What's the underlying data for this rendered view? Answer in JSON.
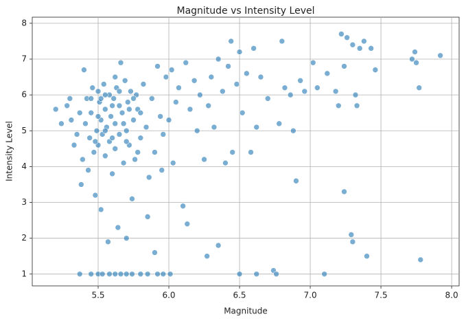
{
  "chart_data": {
    "type": "scatter",
    "title": "Magnitude vs Intensity Level",
    "x_label": "Magnitude",
    "y_label": "Intensity Level",
    "color": "#1f77b4",
    "grid": true,
    "xlim": [
      5.034,
      8.053
    ],
    "ylim": [
      0.67,
      8.17
    ],
    "xticks": [
      {
        "value": 5.5,
        "label": "5.5"
      },
      {
        "value": 6.0,
        "label": "6.0"
      },
      {
        "value": 6.5,
        "label": "6.5"
      },
      {
        "value": 7.0,
        "label": "7.0"
      },
      {
        "value": 7.5,
        "label": "7.5"
      },
      {
        "value": 8.0,
        "label": "8.0"
      }
    ],
    "yticks": [
      1,
      2,
      3,
      4,
      5,
      6,
      7,
      8
    ],
    "x": [
      5.2,
      5.24,
      5.28,
      5.3,
      5.31,
      5.33,
      5.35,
      5.37,
      5.38,
      5.39,
      5.4,
      5.41,
      5.42,
      5.43,
      5.44,
      5.45,
      5.46,
      5.47,
      5.48,
      5.49,
      5.5,
      5.5,
      5.51,
      5.52,
      5.52,
      5.53,
      5.54,
      5.55,
      5.55,
      5.56,
      5.57,
      5.58,
      5.58,
      5.59,
      5.6,
      5.61,
      5.62,
      5.62,
      5.63,
      5.64,
      5.65,
      5.65,
      5.66,
      5.67,
      5.68,
      5.69,
      5.7,
      5.7,
      5.71,
      5.72,
      5.73,
      5.74,
      5.75,
      5.76,
      5.77,
      5.78,
      5.8,
      5.82,
      5.84,
      5.85,
      5.86,
      5.88,
      5.9,
      5.9,
      5.92,
      5.94,
      5.95,
      5.96,
      5.98,
      6.0,
      6.02,
      6.03,
      6.05,
      6.07,
      6.1,
      6.12,
      6.13,
      6.15,
      6.18,
      6.2,
      6.22,
      6.25,
      6.27,
      6.28,
      6.3,
      6.32,
      6.35,
      6.35,
      6.38,
      6.4,
      6.42,
      6.44,
      6.45,
      6.48,
      6.5,
      6.5,
      6.52,
      6.55,
      6.58,
      6.6,
      6.62,
      6.62,
      6.65,
      6.7,
      6.74,
      6.76,
      6.78,
      6.8,
      6.82,
      6.86,
      6.88,
      6.9,
      6.93,
      6.96,
      7.02,
      7.05,
      7.1,
      7.12,
      7.18,
      7.2,
      7.22,
      7.24,
      7.24,
      7.26,
      7.29,
      7.3,
      7.3,
      7.32,
      7.33,
      7.35,
      7.38,
      7.4,
      7.43,
      7.46,
      7.72,
      7.74,
      7.75,
      7.77,
      7.78,
      7.92,
      5.37,
      5.45,
      5.5,
      5.53,
      5.58,
      5.62,
      5.66,
      5.7,
      5.74,
      5.8,
      5.85,
      5.92,
      5.96,
      6.01,
      5.45,
      5.5,
      5.55,
      5.6,
      5.65,
      5.7,
      5.75,
      5.8,
      5.55,
      5.6,
      5.68,
      5.72,
      5.62,
      5.78,
      5.48,
      5.52
    ],
    "y": [
      5.6,
      5.2,
      5.7,
      5.9,
      5.3,
      4.6,
      4.9,
      5.5,
      3.5,
      4.2,
      6.7,
      5.2,
      5.9,
      3.9,
      4.8,
      5.5,
      6.2,
      4.4,
      3.2,
      5.0,
      6.1,
      4.6,
      5.8,
      5.3,
      2.8,
      4.9,
      6.3,
      5.6,
      4.3,
      5.1,
      1.9,
      6.0,
      4.7,
      5.4,
      3.8,
      5.9,
      5.2,
      4.5,
      6.2,
      2.3,
      5.7,
      4.9,
      6.9,
      5.5,
      4.1,
      6.4,
      5.0,
      2.0,
      5.8,
      4.6,
      6.1,
      3.1,
      5.3,
      4.2,
      6.0,
      5.6,
      4.8,
      6.3,
      5.1,
      2.6,
      3.7,
      5.9,
      1.6,
      4.4,
      6.8,
      5.4,
      3.9,
      4.9,
      6.5,
      5.3,
      6.7,
      4.1,
      5.8,
      6.2,
      2.9,
      6.9,
      2.4,
      5.6,
      6.4,
      5.0,
      6.0,
      4.2,
      1.5,
      5.7,
      6.5,
      5.1,
      1.8,
      7.0,
      6.1,
      4.1,
      6.8,
      7.5,
      4.4,
      6.3,
      7.2,
      1,
      5.5,
      6.6,
      4.4,
      7.3,
      1,
      5.1,
      6.5,
      5.9,
      1.1,
      1,
      5.2,
      7.5,
      6.2,
      6.0,
      5.0,
      3.6,
      6.4,
      6.1,
      6.9,
      6.2,
      1,
      6.6,
      6.1,
      5.7,
      7.7,
      3.3,
      6.8,
      7.6,
      2.1,
      1.9,
      7.4,
      6.0,
      5.7,
      7.3,
      7.5,
      1.5,
      7.3,
      6.7,
      7.0,
      7.2,
      6.9,
      6.2,
      1.4,
      7.1,
      1,
      1,
      1,
      1,
      1,
      1,
      1,
      1,
      1,
      1,
      1,
      1,
      1,
      1,
      5.9,
      5.4,
      5.0,
      5.7,
      6.1,
      4.7,
      5.9,
      5.5,
      6.0,
      4.8,
      5.2,
      5.6,
      6.5,
      4.4,
      4.7,
      5.9
    ]
  }
}
